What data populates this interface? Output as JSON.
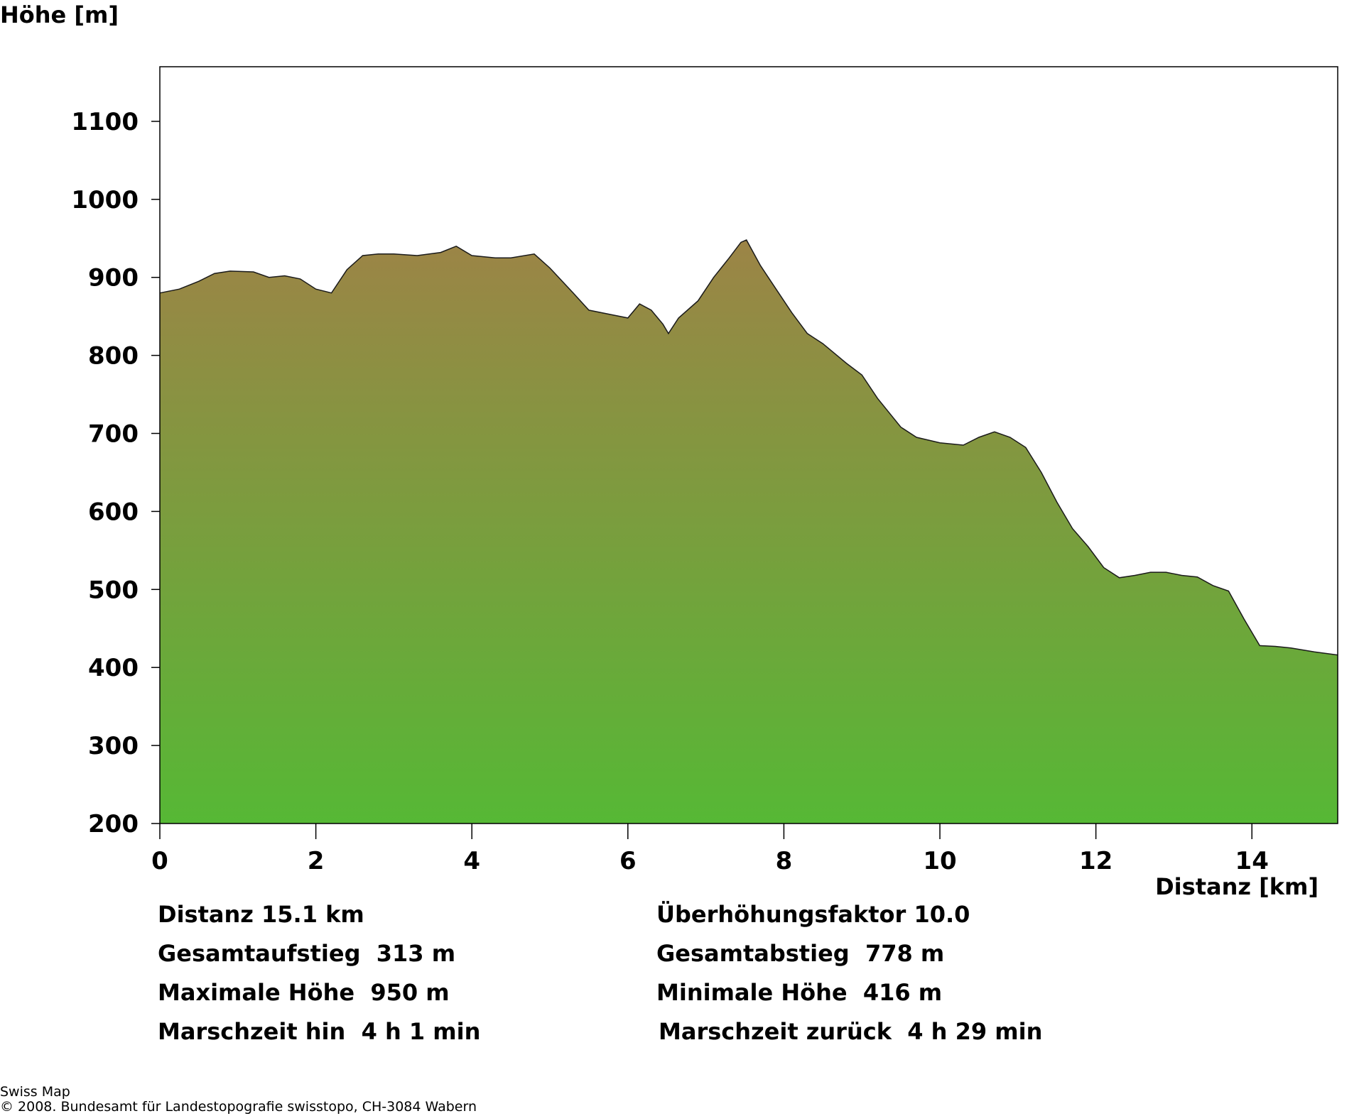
{
  "chart_data": {
    "type": "area",
    "ylabel": "Höhe [m]",
    "xlabel": "Distanz [km]",
    "xlim": [
      0,
      15.1
    ],
    "ylim": [
      200,
      1170
    ],
    "x_ticks": [
      0,
      2,
      4,
      6,
      8,
      10,
      12,
      14
    ],
    "y_ticks": [
      200,
      300,
      400,
      500,
      600,
      700,
      800,
      900,
      1000,
      1100
    ],
    "grid": false,
    "fill_colors": {
      "top": "#9c8446",
      "bottom": "#56b835"
    },
    "x": [
      0,
      0.25,
      0.5,
      0.7,
      0.9,
      1.2,
      1.4,
      1.6,
      1.8,
      2.0,
      2.2,
      2.4,
      2.6,
      2.8,
      3.0,
      3.3,
      3.6,
      3.8,
      4.0,
      4.3,
      4.5,
      4.8,
      5.0,
      5.3,
      5.5,
      5.8,
      6.0,
      6.15,
      6.3,
      6.45,
      6.52,
      6.65,
      6.9,
      7.1,
      7.3,
      7.45,
      7.52,
      7.7,
      7.9,
      8.1,
      8.3,
      8.5,
      8.8,
      9.0,
      9.2,
      9.5,
      9.7,
      10.0,
      10.3,
      10.5,
      10.7,
      10.9,
      11.1,
      11.3,
      11.5,
      11.7,
      11.9,
      12.1,
      12.3,
      12.5,
      12.7,
      12.9,
      13.1,
      13.3,
      13.5,
      13.7,
      13.9,
      14.1,
      14.3,
      14.5,
      14.8,
      15.1
    ],
    "values": [
      880,
      885,
      895,
      905,
      908,
      907,
      900,
      902,
      898,
      885,
      880,
      910,
      928,
      930,
      930,
      928,
      932,
      940,
      928,
      925,
      925,
      930,
      912,
      880,
      858,
      852,
      848,
      866,
      858,
      840,
      828,
      848,
      870,
      900,
      925,
      945,
      948,
      915,
      885,
      855,
      828,
      815,
      790,
      775,
      745,
      708,
      695,
      688,
      685,
      695,
      702,
      695,
      682,
      650,
      612,
      578,
      555,
      528,
      515,
      518,
      522,
      522,
      518,
      516,
      505,
      498,
      462,
      428,
      427,
      425,
      420,
      416
    ]
  },
  "stats": {
    "left": [
      "Distanz 15.1 km",
      "Gesamtaufstieg  313 m",
      "Maximale Höhe  950 m",
      "Marschzeit hin  4 h 1 min"
    ],
    "right": [
      "Überhöhungsfaktor 10.0",
      "Gesamtabstieg  778 m",
      "Minimale Höhe  416 m",
      "Marschzeit zurück  4 h 29 min"
    ]
  },
  "footer": {
    "line1": "Swiss Map",
    "line2": "© 2008. Bundesamt für Landestopografie swisstopo, CH-3084 Wabern"
  }
}
